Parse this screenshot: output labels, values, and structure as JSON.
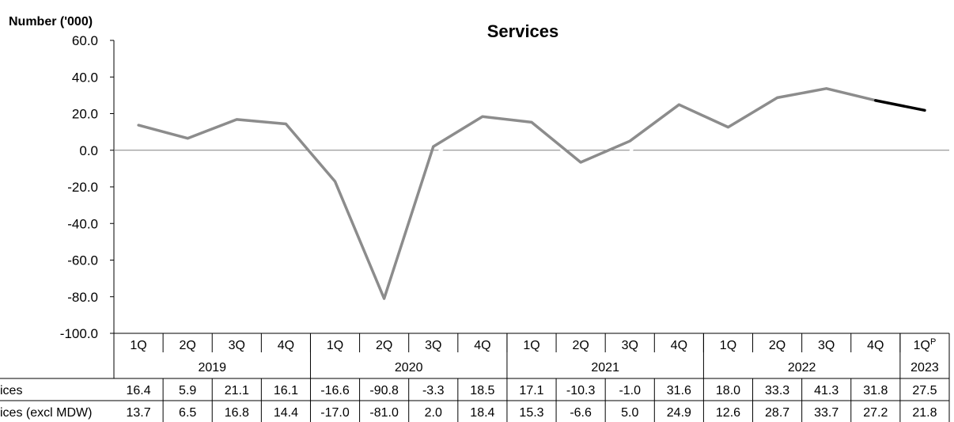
{
  "chart_data": {
    "type": "line",
    "title": "Services",
    "ylabel": "Number ('000)",
    "ylim": [
      -100,
      60
    ],
    "yticks": [
      60,
      40,
      20,
      0,
      -20,
      -40,
      -60,
      -80,
      -100
    ],
    "grid": false,
    "categories": [
      "1Q",
      "2Q",
      "3Q",
      "4Q",
      "1Q",
      "2Q",
      "3Q",
      "4Q",
      "1Q",
      "2Q",
      "3Q",
      "4Q",
      "1Q",
      "2Q",
      "3Q",
      "4Q",
      "1Q"
    ],
    "category_superscripts": [
      "",
      "",
      "",
      "",
      "",
      "",
      "",
      "",
      "",
      "",
      "",
      "",
      "",
      "",
      "",
      "",
      "P"
    ],
    "years": [
      {
        "label": "2019",
        "count": 4
      },
      {
        "label": "2020",
        "count": 4
      },
      {
        "label": "2021",
        "count": 4
      },
      {
        "label": "2022",
        "count": 4
      },
      {
        "label": "2023",
        "count": 1
      }
    ],
    "series": [
      {
        "name": "ices",
        "color": "#ffffff",
        "values": [
          16.4,
          5.9,
          21.1,
          16.1,
          -16.6,
          -90.8,
          -3.3,
          18.5,
          17.1,
          -10.3,
          -1.0,
          31.6,
          18.0,
          33.3,
          41.3,
          31.8,
          27.5
        ]
      },
      {
        "name": "ices (excl MDW)",
        "color": "#8c8c8c",
        "final_segment_color": "#000000",
        "values": [
          13.7,
          6.5,
          16.8,
          14.4,
          -17.0,
          -81.0,
          2.0,
          18.4,
          15.3,
          -6.6,
          5.0,
          24.9,
          12.6,
          28.7,
          33.7,
          27.2,
          21.8
        ]
      }
    ]
  }
}
